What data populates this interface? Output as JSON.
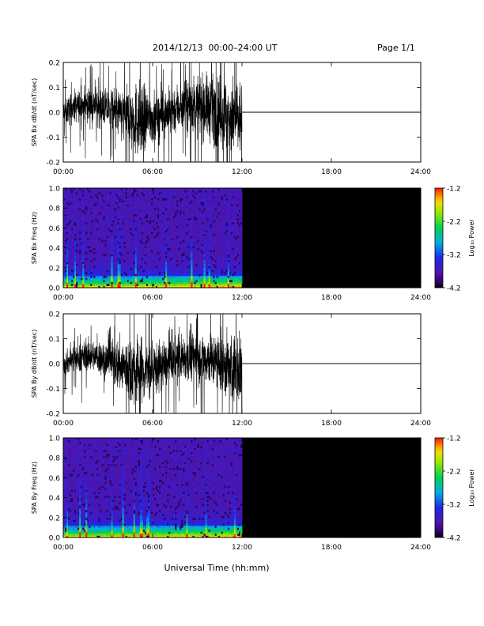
{
  "header": {
    "title": "2014/12/13  00:00–24:00 UT",
    "page": "Page 1/1"
  },
  "footer": {
    "xlabel": "Universal Time (hh:mm)"
  },
  "x_ticks": [
    "00:00",
    "06:00",
    "12:00",
    "18:00",
    "24:00"
  ],
  "chart_data": [
    {
      "type": "line",
      "ylabel": "SPA Bx dB/dt (nT/sec)",
      "xlim": [
        0,
        24
      ],
      "ylim": [
        -0.2,
        0.2
      ],
      "y_ticks": [
        "0.2",
        "0.1",
        "0.0",
        "-0.1",
        "-0.2"
      ],
      "y_tick_values": [
        0.2,
        0.1,
        0.0,
        -0.1,
        -0.2
      ],
      "data_end_hour": 12,
      "amplitude_envelope": {
        "hours": [
          0,
          1,
          2,
          3,
          4,
          5,
          6,
          7,
          8,
          9,
          10,
          11,
          12
        ],
        "amplitude": [
          0.07,
          0.08,
          0.09,
          0.1,
          0.14,
          0.2,
          0.13,
          0.12,
          0.13,
          0.15,
          0.17,
          0.2,
          0.2
        ]
      },
      "after_data_value": 0.0,
      "color": "#000000"
    },
    {
      "type": "heatmap",
      "ylabel": "SPA Bx Freq (Hz)",
      "xlim": [
        0,
        24
      ],
      "ylim": [
        0.0,
        1.0
      ],
      "y_ticks": [
        "1.0",
        "0.8",
        "0.6",
        "0.4",
        "0.2",
        "0.0"
      ],
      "y_tick_values": [
        1.0,
        0.8,
        0.6,
        0.4,
        0.2,
        0.0
      ],
      "data_end_hour": 12,
      "colorbar": {
        "label": "Log₁₀ Power",
        "range": [
          -4.2,
          -1.2
        ],
        "ticks": [
          "-1.2",
          "-2.2",
          "-3.2",
          "-4.2"
        ],
        "tick_values": [
          -1.2,
          -2.2,
          -3.2,
          -4.2
        ]
      },
      "no_data_color": "#000000"
    },
    {
      "type": "line",
      "ylabel": "SPA By dB/dt (nT/sec)",
      "xlim": [
        0,
        24
      ],
      "ylim": [
        -0.2,
        0.2
      ],
      "y_ticks": [
        "0.2",
        "0.1",
        "0.0",
        "-0.1",
        "-0.2"
      ],
      "y_tick_values": [
        0.2,
        0.1,
        0.0,
        -0.1,
        -0.2
      ],
      "data_end_hour": 12,
      "amplitude_envelope": {
        "hours": [
          0,
          1,
          2,
          3,
          4,
          5,
          6,
          7,
          8,
          9,
          10,
          11,
          12
        ],
        "amplitude": [
          0.06,
          0.07,
          0.08,
          0.1,
          0.15,
          0.2,
          0.14,
          0.11,
          0.12,
          0.13,
          0.14,
          0.17,
          0.2
        ]
      },
      "after_data_value": 0.0,
      "color": "#000000"
    },
    {
      "type": "heatmap",
      "ylabel": "SPA By Freq (Hz)",
      "xlim": [
        0,
        24
      ],
      "ylim": [
        0.0,
        1.0
      ],
      "y_ticks": [
        "1.0",
        "0.8",
        "0.6",
        "0.4",
        "0.2",
        "0.0"
      ],
      "y_tick_values": [
        1.0,
        0.8,
        0.6,
        0.4,
        0.2,
        0.0
      ],
      "data_end_hour": 12,
      "colorbar": {
        "label": "Log₁₀ Power",
        "range": [
          -4.2,
          -1.2
        ],
        "ticks": [
          "-1.2",
          "-2.2",
          "-3.2",
          "-4.2"
        ],
        "tick_values": [
          -1.2,
          -2.2,
          -3.2,
          -4.2
        ]
      },
      "no_data_color": "#000000"
    }
  ]
}
